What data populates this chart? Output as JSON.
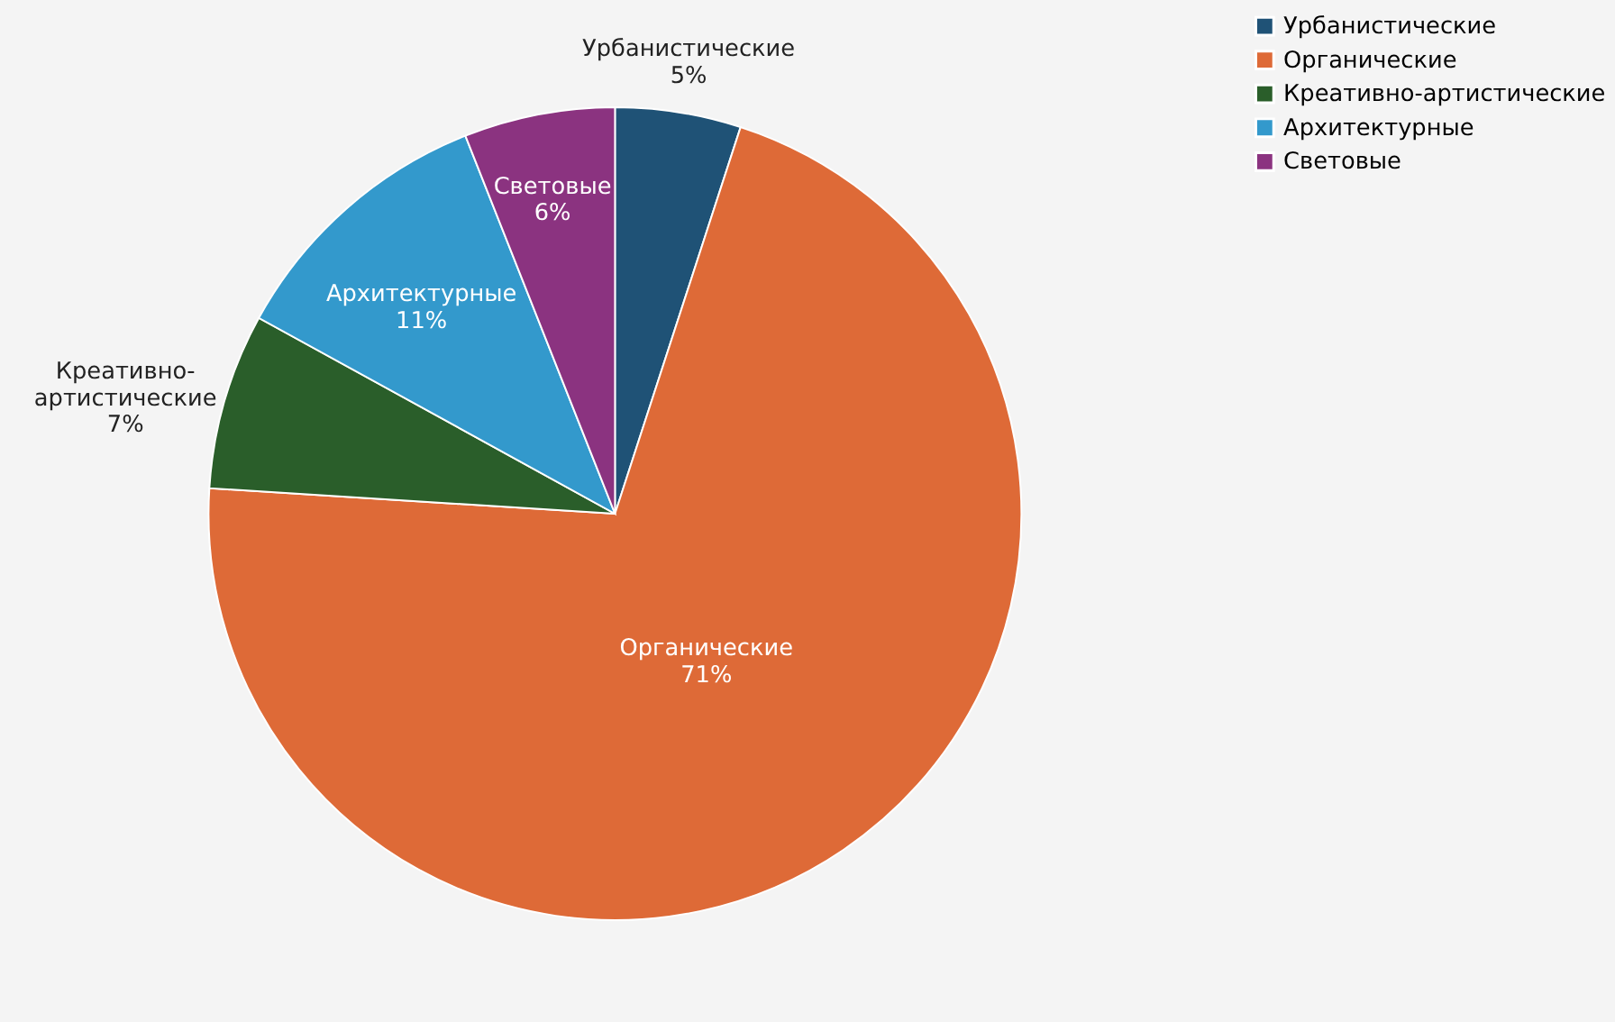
{
  "chart_data": {
    "type": "pie",
    "categories": [
      "Урбанистические",
      "Органические",
      "Креативно-артистические",
      "Архитектурные",
      "Световые"
    ],
    "values": [
      5,
      71,
      7,
      11,
      6
    ],
    "value_labels": [
      "5%",
      "71%",
      "7%",
      "11%",
      "6%"
    ],
    "colors": [
      "#1f5276",
      "#de6a37",
      "#2a5e2a",
      "#3399cc",
      "#8b3380"
    ],
    "legend": "right"
  }
}
